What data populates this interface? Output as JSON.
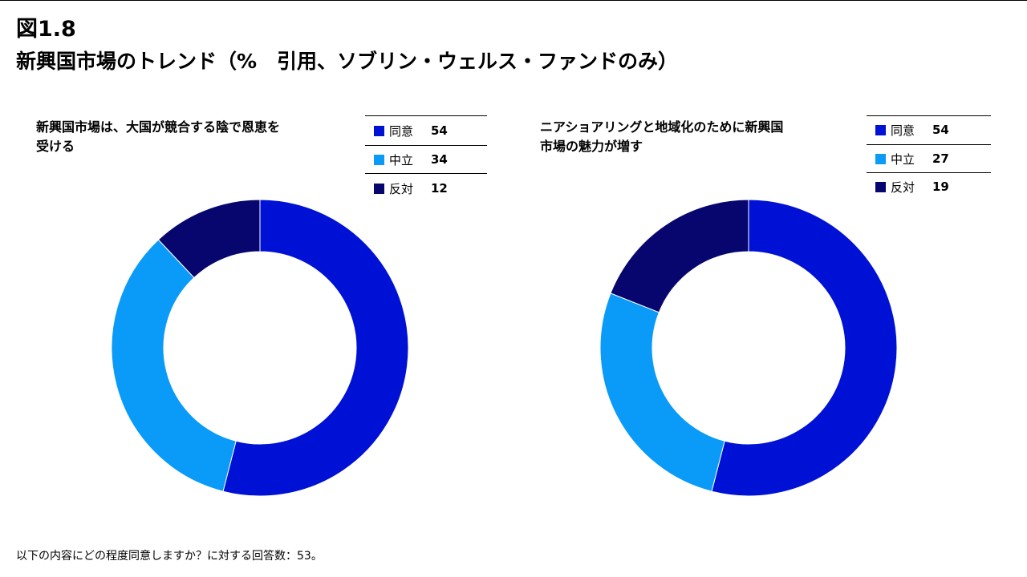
{
  "figure": {
    "number": "図1.8",
    "title": "新興国市場のトレンド（%　引用、ソブリン・ウェルス・ファンドのみ）"
  },
  "chart_data": [
    {
      "type": "pie",
      "donut": true,
      "title": "新興国市場は、大国が競合する陰で恩恵を受ける",
      "categories": [
        "同意",
        "中立",
        "反対"
      ],
      "values": [
        54,
        34,
        12
      ],
      "colors": [
        "#0011d6",
        "#0a9af7",
        "#06066e"
      ],
      "legend": "top-right"
    },
    {
      "type": "pie",
      "donut": true,
      "title": "ニアショアリングと地域化のために新興国市場の魅力が増す",
      "categories": [
        "同意",
        "中立",
        "反対"
      ],
      "values": [
        54,
        27,
        19
      ],
      "colors": [
        "#0011d6",
        "#0a9af7",
        "#06066e"
      ],
      "legend": "top-right"
    }
  ],
  "footnote": "以下の内容にどの程度同意しますか？に対する回答数：53。"
}
